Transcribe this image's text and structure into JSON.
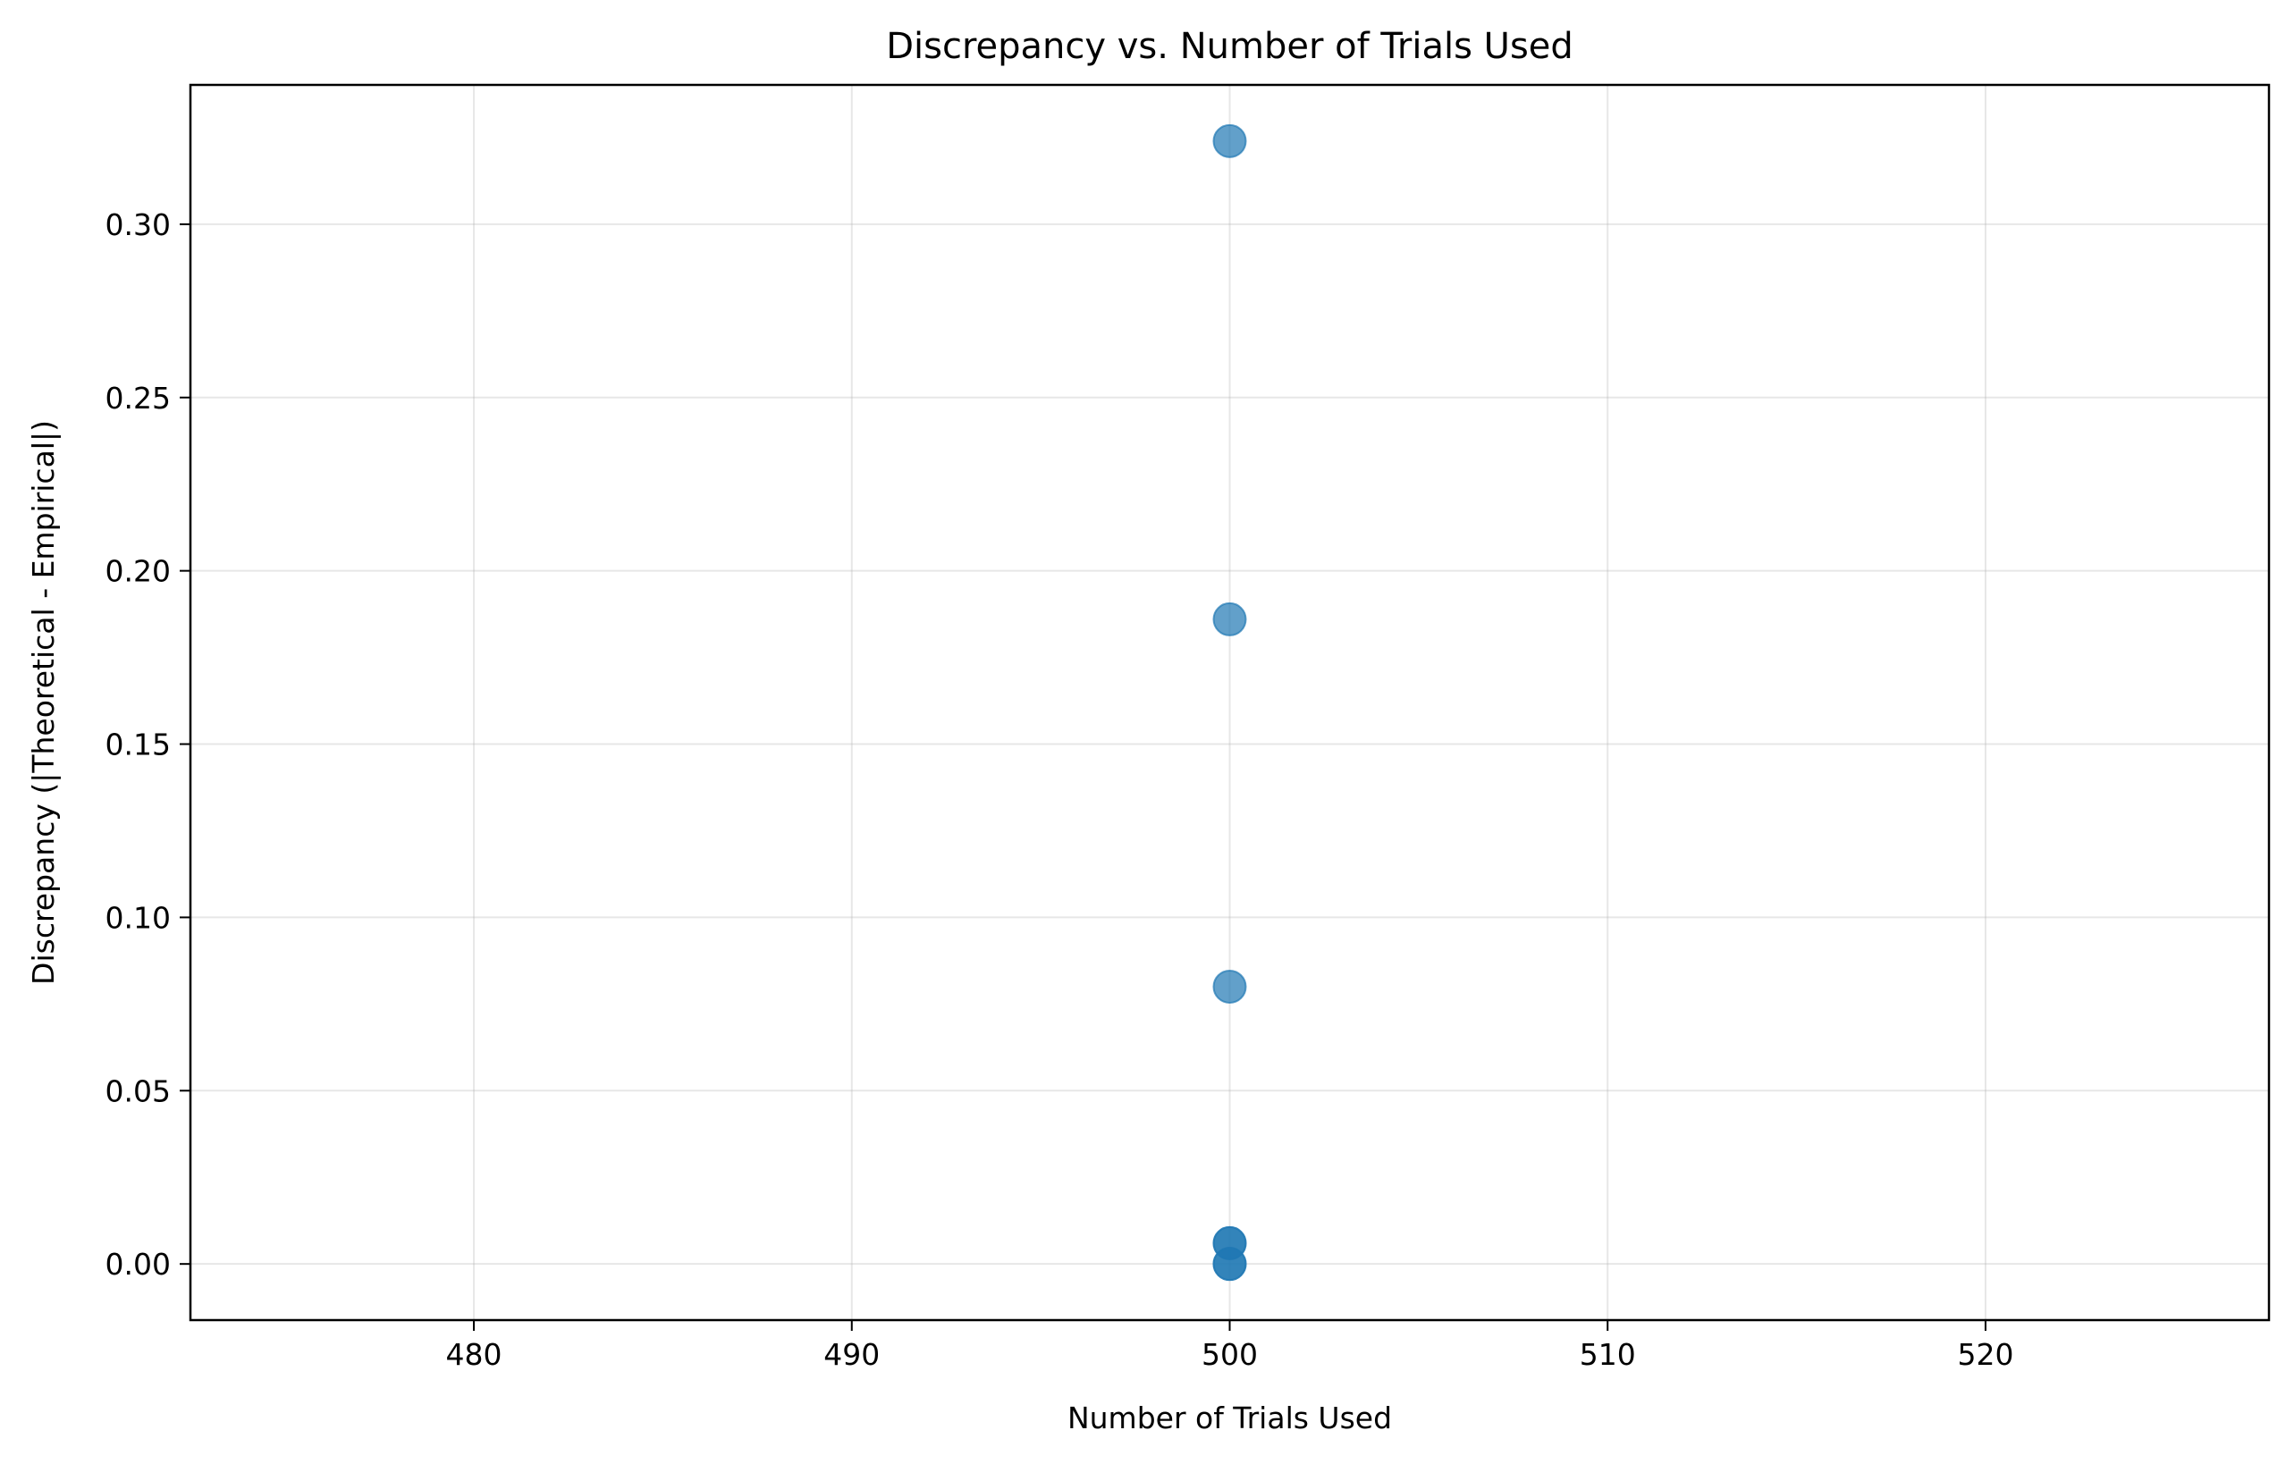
{
  "chart_data": {
    "type": "scatter",
    "title": "Discrepancy vs. Number of Trials Used",
    "xlabel": "Number of Trials Used",
    "ylabel": "Discrepancy (|Theoretical - Empirical|)",
    "xlim": [
      472.5,
      527.5
    ],
    "ylim": [
      -0.0162,
      0.3402
    ],
    "x_ticks": [
      480,
      490,
      500,
      510,
      520
    ],
    "x_tick_labels": [
      "480",
      "490",
      "500",
      "510",
      "520"
    ],
    "y_ticks": [
      0.0,
      0.05,
      0.1,
      0.15,
      0.2,
      0.25,
      0.3
    ],
    "y_tick_labels": [
      "0.00",
      "0.05",
      "0.10",
      "0.15",
      "0.20",
      "0.25",
      "0.30"
    ],
    "grid": true,
    "marker_color": "#1f77b4",
    "marker_alpha": 0.7,
    "points": [
      {
        "x": 500,
        "y": 0.324
      },
      {
        "x": 500,
        "y": 0.186
      },
      {
        "x": 500,
        "y": 0.08
      },
      {
        "x": 500,
        "y": 0.006
      },
      {
        "x": 500,
        "y": 0.006
      },
      {
        "x": 500,
        "y": 0.0
      },
      {
        "x": 500,
        "y": 0.0
      }
    ]
  }
}
